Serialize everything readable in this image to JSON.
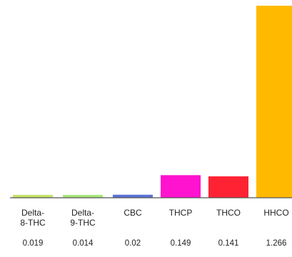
{
  "chart_data": {
    "type": "bar",
    "categories": [
      [
        "Delta-",
        "8-THC"
      ],
      [
        "Delta-",
        "9-THC"
      ],
      [
        "CBC"
      ],
      [
        "THCP"
      ],
      [
        "THCO"
      ],
      [
        "HHCO"
      ]
    ],
    "values": [
      0.019,
      0.014,
      0.02,
      0.149,
      0.141,
      1.266
    ],
    "value_labels": [
      "0.019",
      "0.014",
      "0.02",
      "0.149",
      "0.141",
      "1.266"
    ],
    "colors": [
      "#c6e36a",
      "#a6e87a",
      "#5b73d6",
      "#ff13cf",
      "#ff2233",
      "#ffba00"
    ],
    "ylim": [
      0,
      1.266
    ],
    "grid": false,
    "legend": "none",
    "axis_line_color": "#555555"
  }
}
